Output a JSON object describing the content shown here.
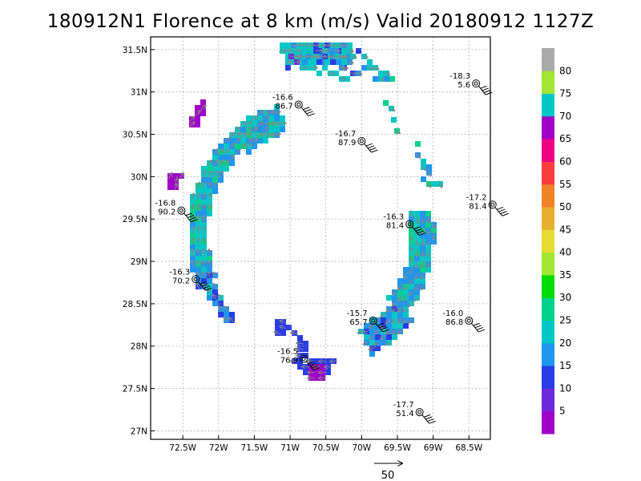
{
  "chart_data": {
    "type": "heatmap",
    "title": "180912N1 Florence at 8 km (m/s) Valid 20180912 1127Z",
    "x_ticks": [
      "72.5W",
      "72W",
      "71.5W",
      "71W",
      "70.5W",
      "70W",
      "69.5W",
      "69W",
      "68.5W"
    ],
    "y_ticks": [
      "31.5N",
      "31N",
      "30.5N",
      "30N",
      "29.5N",
      "29N",
      "28.5N",
      "28N",
      "27.5N",
      "27N"
    ],
    "xlim": [
      -72.95,
      -68.2
    ],
    "ylim": [
      26.9,
      31.65
    ],
    "grid": true,
    "colorbar": {
      "labels": [
        "5",
        "10",
        "15",
        "20",
        "25",
        "30",
        "35",
        "40",
        "45",
        "50",
        "55",
        "60",
        "65",
        "70",
        "75",
        "80"
      ],
      "colors": [
        "#a000c8",
        "#6e28dc",
        "#2a3ce6",
        "#1e96f0",
        "#00c8c8",
        "#00d28c",
        "#00dc00",
        "#a0e632",
        "#e6dc32",
        "#e6af2d",
        "#f08228",
        "#fa3c3c",
        "#f00082",
        "#a000c8",
        "#00c8c8",
        "#a0e632",
        "#aaaaaa"
      ]
    },
    "wind_reference": "50",
    "stations": [
      {
        "lon": -70.88,
        "lat": 30.85,
        "temp": "-16.6",
        "value": "86.7"
      },
      {
        "lon": -70.0,
        "lat": 30.42,
        "temp": "-16.7",
        "value": "87.9"
      },
      {
        "lon": -68.4,
        "lat": 31.1,
        "temp": "-18.3",
        "value": "5.6"
      },
      {
        "lon": -72.52,
        "lat": 29.6,
        "temp": "-16.8",
        "value": "90.2"
      },
      {
        "lon": -68.17,
        "lat": 29.67,
        "temp": "-17.2",
        "value": "81.4"
      },
      {
        "lon": -69.33,
        "lat": 29.44,
        "temp": "-16.3",
        "value": "81.4"
      },
      {
        "lon": -72.32,
        "lat": 28.79,
        "temp": "-16.3",
        "value": "70.2"
      },
      {
        "lon": -69.84,
        "lat": 28.3,
        "temp": "-15.7",
        "value": "65.7"
      },
      {
        "lon": -68.5,
        "lat": 28.3,
        "temp": "-16.0",
        "value": "86.8"
      },
      {
        "lon": -70.81,
        "lat": 27.85,
        "temp": "-16.5",
        "value": "76.9"
      },
      {
        "lon": -69.19,
        "lat": 27.22,
        "temp": "-17.7",
        "value": "51.4"
      }
    ]
  }
}
